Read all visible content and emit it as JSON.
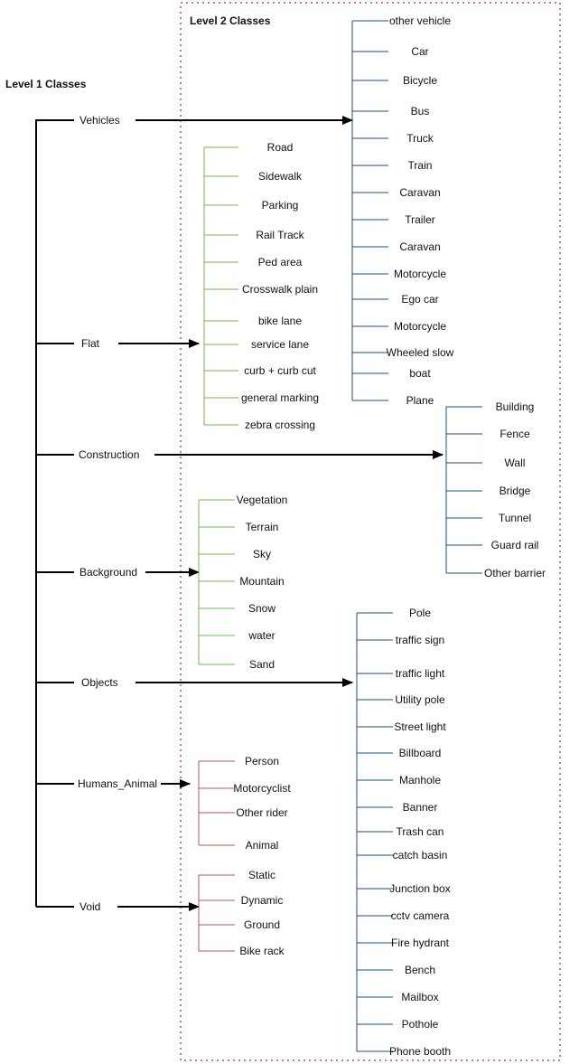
{
  "headings": {
    "level1": "Level 1 Classes",
    "level2": "Level 2 Classes"
  },
  "colors": {
    "trunk": "#000000",
    "blue": "#1f4e79",
    "green": "#7ab648",
    "red": "#b85450",
    "dotted_border": "#b85450"
  },
  "level1": [
    {
      "label": "Vehicles",
      "children": [
        "other vehicle",
        "Car",
        "Bicycle",
        "Bus",
        "Truck",
        "Train",
        "Caravan",
        "Trailer",
        "Caravan",
        "Motorcycle",
        "Ego car",
        "Motorcycle",
        "Wheeled slow",
        "boat",
        "Plane"
      ]
    },
    {
      "label": "Flat",
      "children": [
        "Road",
        "Sidewalk",
        "Parking",
        "Rail Track",
        "Ped area",
        "Crosswalk plain",
        "bike lane",
        "service lane",
        "curb + curb cut",
        "general marking",
        "zebra crossing"
      ]
    },
    {
      "label": "Construction",
      "children": [
        "Building",
        "Fence",
        "Wall",
        "Bridge",
        "Tunnel",
        "Guard rail",
        "Other barrier"
      ]
    },
    {
      "label": "Background",
      "children": [
        "Vegetation",
        "Terrain",
        "Sky",
        "Mountain",
        "Snow",
        "water",
        "Sand"
      ]
    },
    {
      "label": "Objects",
      "children": [
        "Pole",
        "traffic sign",
        "traffic light",
        "Utility pole",
        "Street light",
        "Billboard",
        "Manhole",
        "Banner",
        "Trash can",
        "catch basin",
        "Junction box",
        "cctv camera",
        "Fire hydrant",
        "Bench",
        "Mailbox",
        "Pothole",
        "Phone booth"
      ]
    },
    {
      "label": "Humans_Animal",
      "children": [
        "Person",
        "Motorcyclist",
        "Other rider",
        "Animal"
      ]
    },
    {
      "label": "Void",
      "children": [
        "Static",
        "Dynamic",
        "Ground",
        "Bike rack"
      ]
    }
  ]
}
